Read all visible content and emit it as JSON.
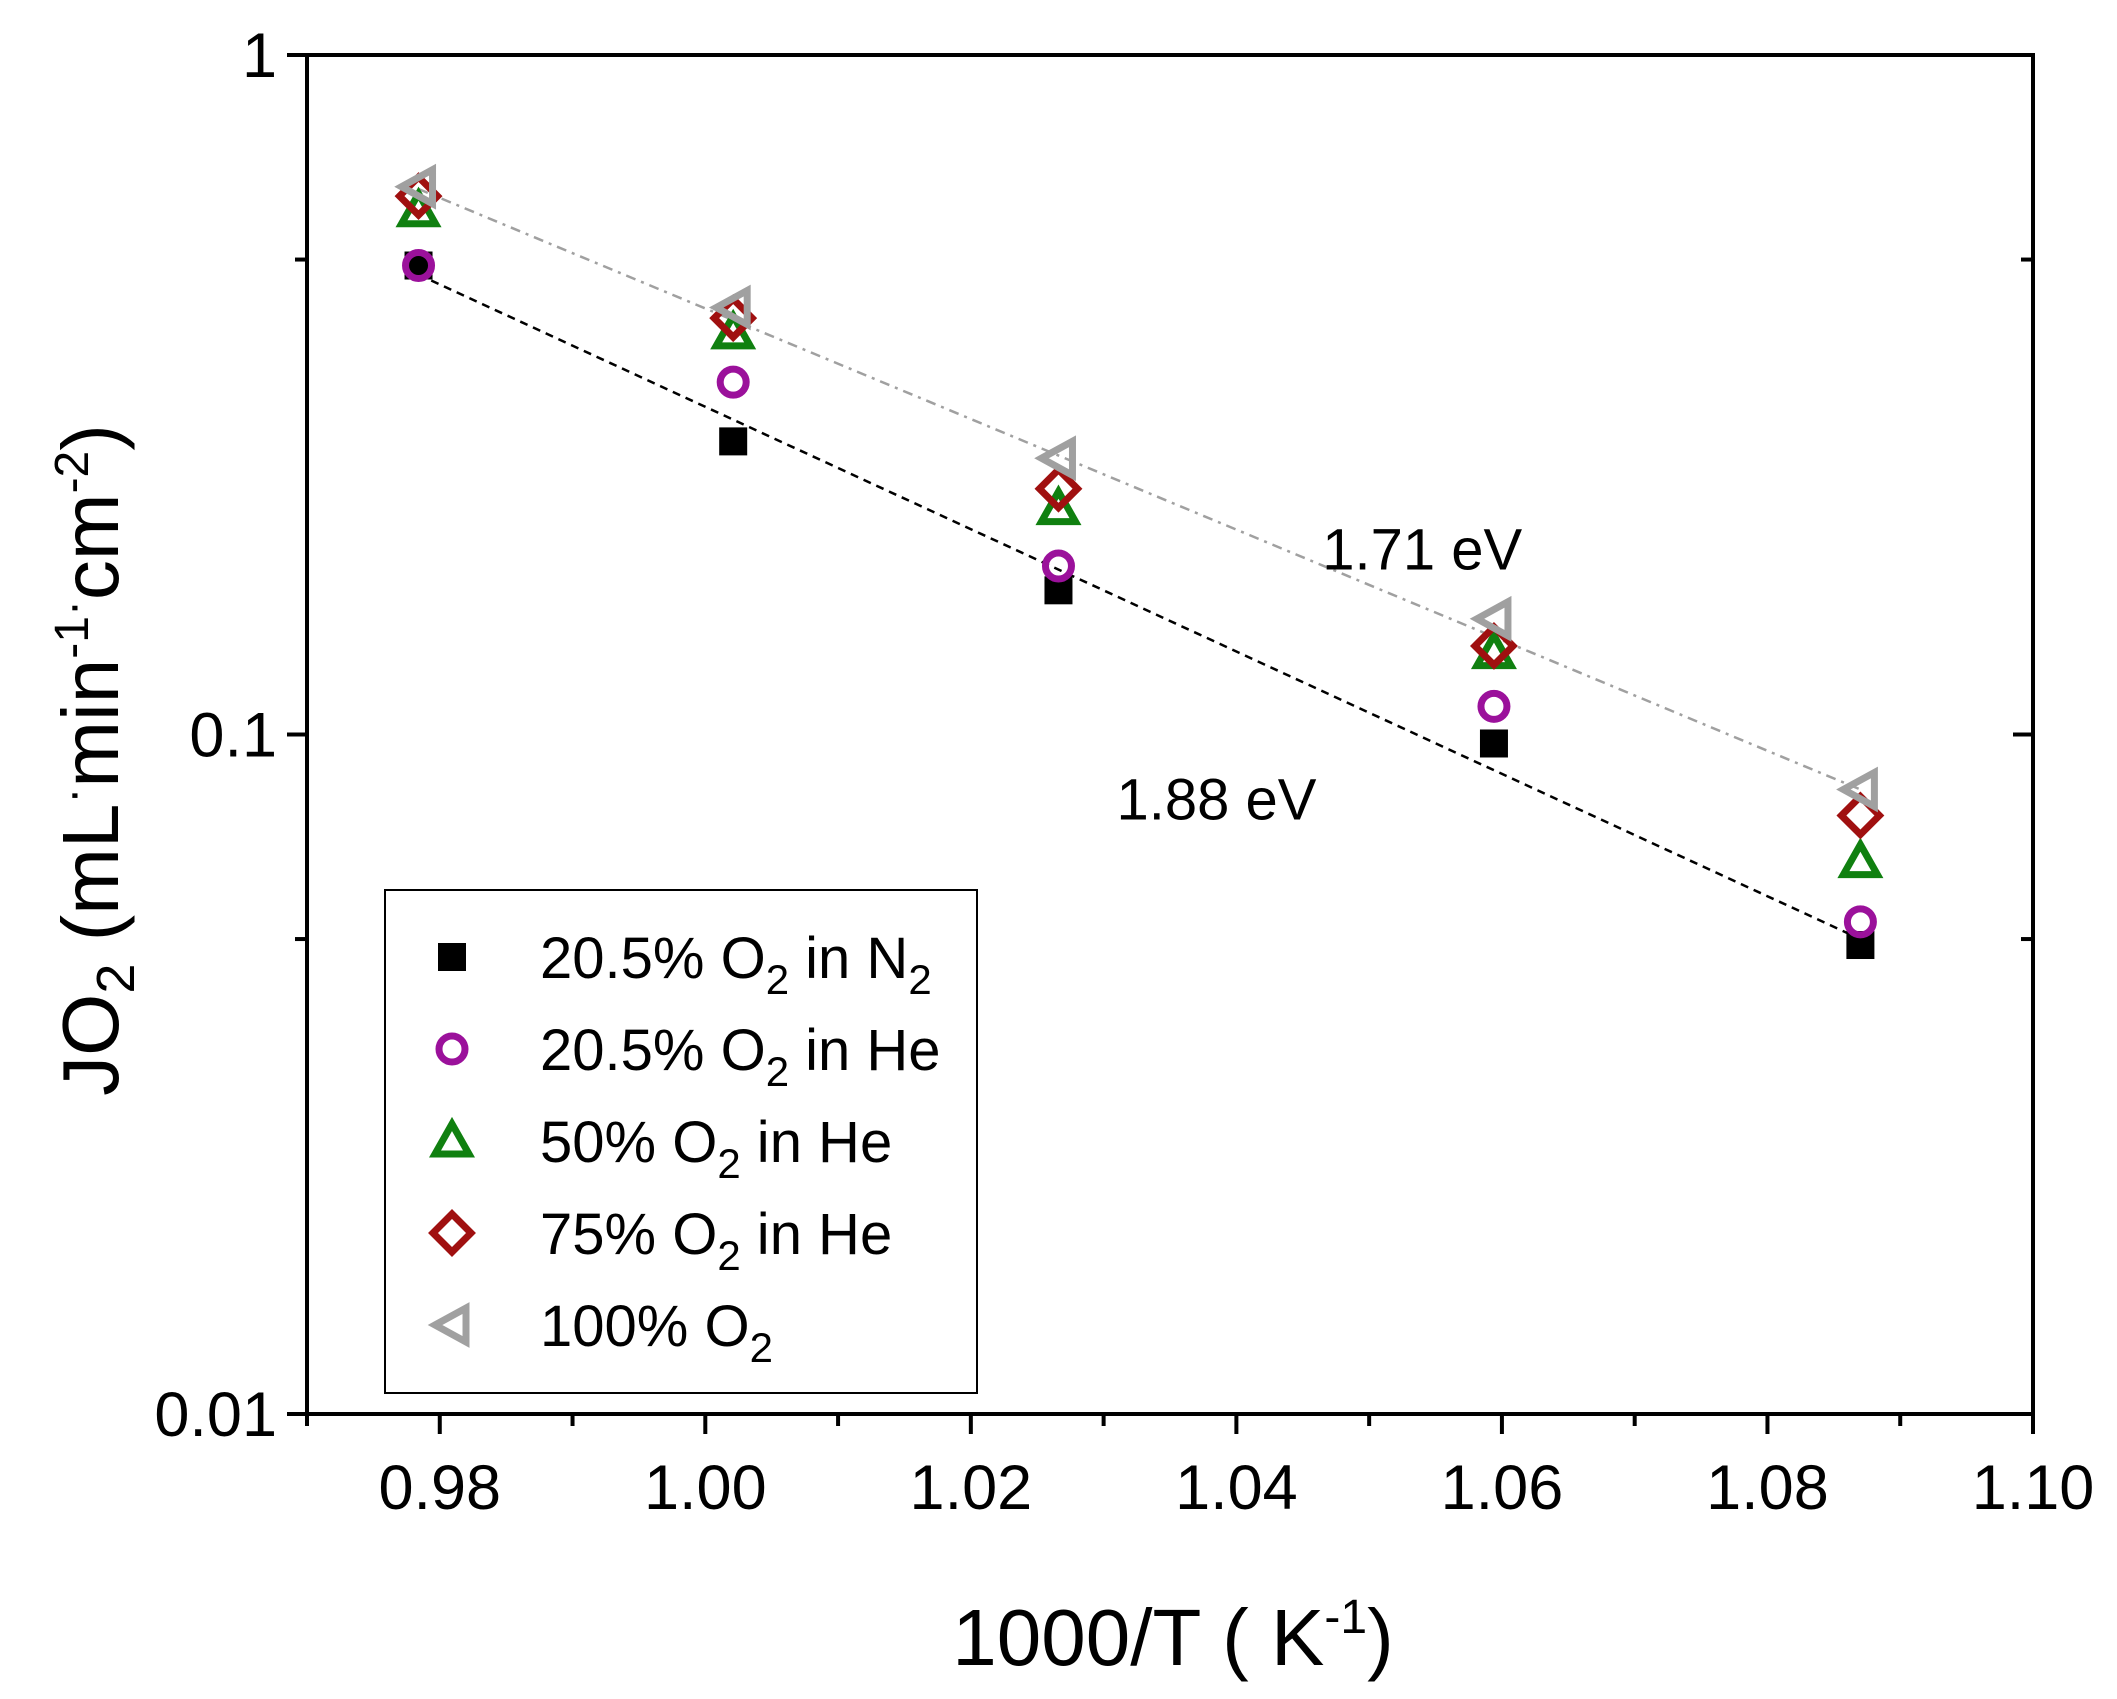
{
  "chart_data": {
    "type": "scatter",
    "title": "",
    "xlabel": "1000/T ( K^-1)",
    "xlabel_parts": {
      "main": "1000/T ( K",
      "sup": "-1",
      "end": ")"
    },
    "ylabel": "JO2 (mL·min^-1·cm^-2)",
    "ylabel_parts": {
      "j": "JO",
      "two": "2",
      "open": " (mL",
      "dot": "·",
      "min": "min",
      "sup1": "-1",
      "cm": "cm",
      "sup2": "-2",
      "close": ")"
    },
    "xlim": [
      0.97,
      1.1
    ],
    "ylim": [
      0.01,
      1
    ],
    "yscale": "log",
    "x_ticks": [
      "0.98",
      "1.00",
      "1.02",
      "1.04",
      "1.06",
      "1.08",
      "1.10"
    ],
    "x_tick_values": [
      0.98,
      1.0,
      1.02,
      1.04,
      1.06,
      1.08,
      1.1
    ],
    "y_ticks": [
      "0.01",
      "0.1",
      "1"
    ],
    "y_tick_values": [
      0.01,
      0.1,
      1
    ],
    "x": [
      0.9784,
      1.0021,
      1.0266,
      1.0594,
      1.087
    ],
    "series": [
      {
        "name": "20.5% O2 in N2",
        "label": "20.5% O",
        "sub": "2",
        "suffix": " in N",
        "suffix_sub": "2",
        "marker": "square",
        "color": "#000000",
        "values": [
          0.49,
          0.27,
          0.163,
          0.097,
          0.049
        ]
      },
      {
        "name": "20.5% O2 in He",
        "label": "20.5% O",
        "sub": "2",
        "suffix": " in He",
        "suffix_sub": "",
        "marker": "circle",
        "color": "#9b119b",
        "values": [
          0.49,
          0.33,
          0.177,
          0.11,
          0.053
        ]
      },
      {
        "name": "50% O2 in He",
        "label": "50% O",
        "sub": "2",
        "suffix": " in He",
        "suffix_sub": "",
        "marker": "triangle-up",
        "color": "#108010",
        "values": [
          0.59,
          0.39,
          0.215,
          0.132,
          0.065
        ]
      },
      {
        "name": "75% O2 in He",
        "label": "75% O",
        "sub": "2",
        "suffix": " in He",
        "suffix_sub": "",
        "marker": "diamond",
        "color": "#a01010",
        "values": [
          0.62,
          0.41,
          0.23,
          0.135,
          0.076
        ]
      },
      {
        "name": "100% O2",
        "label": "100% O",
        "sub": "2",
        "suffix": "",
        "suffix_sub": "",
        "marker": "triangle-left",
        "color": "#a0a0a0",
        "values": [
          0.64,
          0.425,
          0.255,
          0.148,
          0.083
        ]
      }
    ],
    "fit_lines": [
      {
        "name": "fit-20.5% O2 in N2",
        "color": "#000000",
        "dash": "short",
        "x": [
          0.9784,
          1.087
        ],
        "y": [
          0.475,
          0.05
        ]
      },
      {
        "name": "fit-100% O2",
        "color": "#a0a0a0",
        "dash": "dashdot",
        "x": [
          0.9784,
          1.087
        ],
        "y": [
          0.635,
          0.083
        ]
      }
    ],
    "annotations": [
      {
        "text": "1.71 eV",
        "x": 1.054,
        "y": 0.175
      },
      {
        "text": "1.88 eV",
        "x": 1.0385,
        "y": 0.075
      }
    ],
    "legend_position": "bottom-left",
    "grid": false
  }
}
